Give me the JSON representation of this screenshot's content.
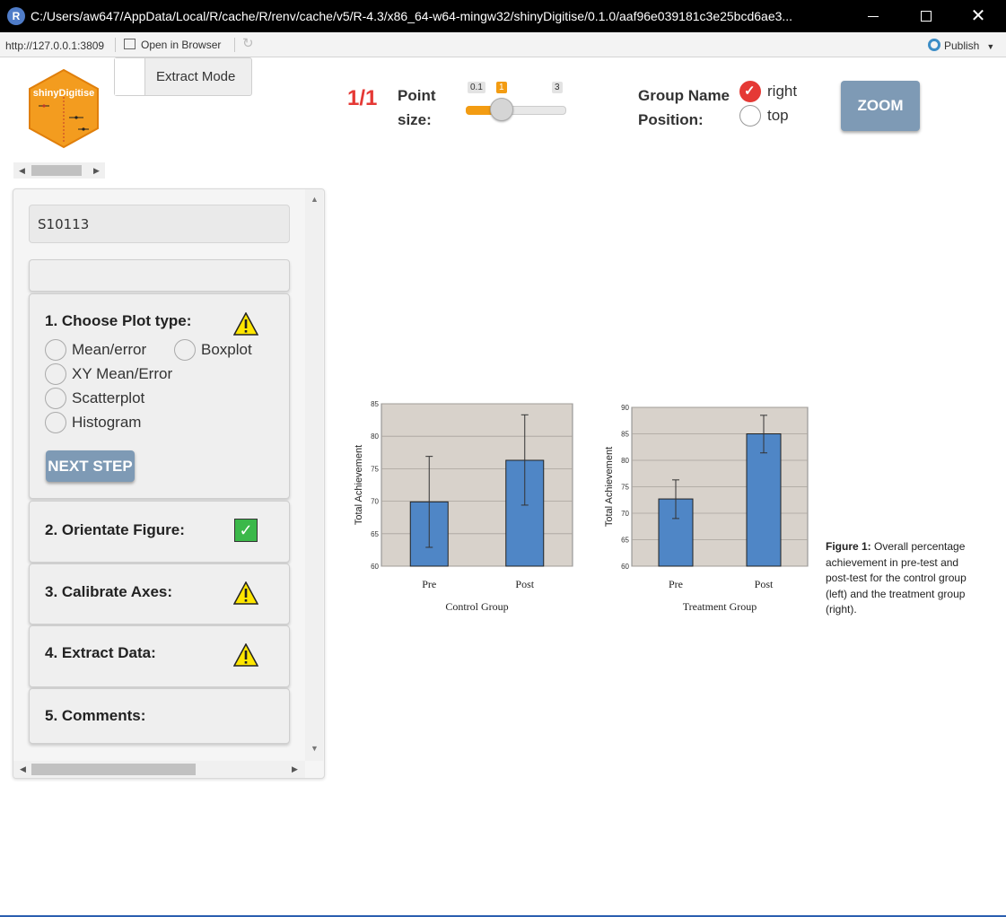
{
  "window": {
    "title": "C:/Users/aw647/AppData/Local/R/cache/R/renv/cache/v5/R-4.3/x86_64-w64-mingw32/shinyDigitise/0.1.0/aaf96e039181c3e25bcd6ae3...",
    "app_icon": "R",
    "minimize_icon": "minimize-icon",
    "maximize_icon": "maximize-icon",
    "close_icon": "close-icon"
  },
  "toolbar": {
    "url": "http://127.0.0.1:3809",
    "open_in_browser": "Open in Browser",
    "publish": "Publish"
  },
  "app": {
    "logo_text": "shinyDigitise",
    "extract_mode_label": "Extract Mode",
    "counter": "1/1",
    "point_size": {
      "label_line1": "Point",
      "label_line2": "size:",
      "min": "0.1",
      "max": "3",
      "value": "1",
      "value_numeric": 1
    },
    "group_name_position": {
      "label_line1": "Group Name",
      "label_line2": "Position:",
      "options": [
        {
          "label": "right",
          "selected": true
        },
        {
          "label": "top",
          "selected": false
        }
      ]
    },
    "zoom_label": "ZOOM"
  },
  "sidebar": {
    "study_id": "S10113",
    "step1": {
      "title": "1. Choose Plot type:",
      "status": "warning",
      "options": [
        "Mean/error",
        "Boxplot",
        "XY Mean/Error",
        "Scatterplot",
        "Histogram"
      ],
      "next_button": "NEXT STEP"
    },
    "step2": {
      "title": "2. Orientate Figure:",
      "status": "complete"
    },
    "step3": {
      "title": "3. Calibrate Axes:",
      "status": "warning"
    },
    "step4": {
      "title": "4. Extract Data:",
      "status": "warning"
    },
    "step5": {
      "title": "5. Comments:"
    }
  },
  "figure": {
    "caption_bold": "Figure 1:",
    "caption_text": "Overall percentage achievement in pre-test and post-test for the control group (left) and the treatment group (right).",
    "bar_color": "#4f86c6",
    "plot_bg": "#d8d2cb"
  },
  "chart_data": [
    {
      "type": "bar",
      "title": "",
      "xlabel": "Control Group",
      "ylabel": "Total Achievement",
      "categories": [
        "Pre",
        "Post"
      ],
      "values": [
        69.9,
        76.3
      ],
      "error_low": [
        62.9,
        69.4
      ],
      "error_high": [
        76.9,
        83.3
      ],
      "ylim": [
        60,
        85
      ],
      "yticks": [
        "60",
        "65",
        "70",
        "75",
        "80",
        "85"
      ],
      "grid": true
    },
    {
      "type": "bar",
      "title": "",
      "xlabel": "Treatment Group",
      "ylabel": "Total Achievement",
      "categories": [
        "Pre",
        "Post"
      ],
      "values": [
        72.7,
        85.0
      ],
      "error_low": [
        69.0,
        81.4
      ],
      "error_high": [
        76.3,
        88.5
      ],
      "ylim": [
        60,
        90
      ],
      "yticks": [
        "60",
        "65",
        "70",
        "75",
        "80",
        "85",
        "90"
      ],
      "grid": true
    }
  ]
}
